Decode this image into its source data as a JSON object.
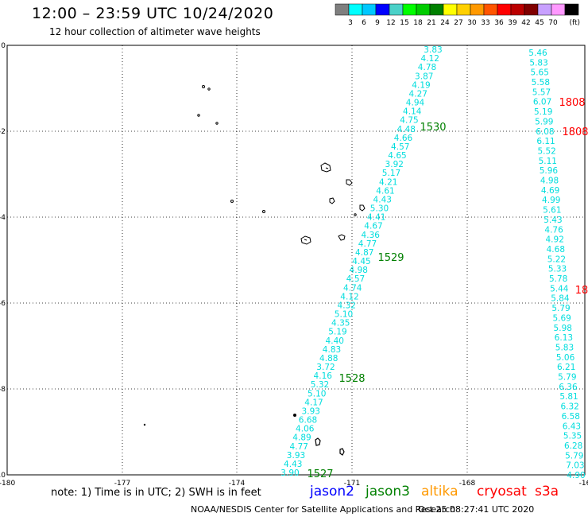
{
  "header": {
    "title": "12:00 – 23:59 UTC 10/24/2020",
    "subtitle": "12 hour collection of altimeter wave heights"
  },
  "colorbar": {
    "labels": [
      "3",
      "6",
      "9",
      "12",
      "15",
      "18",
      "21",
      "24",
      "27",
      "30",
      "33",
      "36",
      "39",
      "42",
      "45",
      "70"
    ],
    "unit": "(ft)",
    "colors": [
      "#7f7f7f",
      "#00ffff",
      "#00c8ff",
      "#0000ff",
      "#4bd1c8",
      "#00ff00",
      "#00cc00",
      "#008000",
      "#ffff00",
      "#ffd000",
      "#ff9900",
      "#ff5500",
      "#ff0000",
      "#bb0000",
      "#800000",
      "#c8a0ff",
      "#ff99ff",
      "#000000"
    ]
  },
  "axes": {
    "x_ticks": [
      "-180",
      "-177",
      "-174",
      "-171",
      "-168",
      "-16"
    ],
    "y_ticks": [
      "0",
      "-2",
      "-4",
      "-6",
      "-8",
      "-10"
    ]
  },
  "tracks": {
    "jason3_diag": {
      "color": "#00dddd",
      "values": [
        "3.83",
        "4.12",
        "4.78",
        "3.87",
        "4.19",
        "4.27",
        "4.94",
        "4.14",
        "4.75",
        "4.48",
        "4.66",
        "4.57",
        "4.65",
        "3.92",
        "5.17",
        "4.21",
        "4.61",
        "4.43",
        "5.30",
        "4.41",
        "4.67",
        "4.36",
        "4.77",
        "4.87",
        "4.45",
        "4.98",
        "4.57",
        "4.74",
        "4.12",
        "4.32",
        "5.10",
        "4.35",
        "5.19",
        "4.40",
        "4.83",
        "4.88",
        "3.72",
        "4.16",
        "5.32",
        "5.10",
        "4.17",
        "3.93",
        "6.68",
        "4.06",
        "4.89",
        "4.77",
        "3.93",
        "4.43",
        "3.90"
      ]
    },
    "right_col": {
      "color": "#00dddd",
      "values": [
        "5.46",
        "5.83",
        "5.65",
        "5.58",
        "5.57",
        "6.07",
        "5.19",
        "5.99",
        "6.08",
        "6.11",
        "5.52",
        "5.11",
        "5.96",
        "4.98",
        "4.69",
        "4.99",
        "5.61",
        "5.43",
        "4.76",
        "4.92",
        "4.68",
        "5.22",
        "5.33",
        "5.78",
        "5.44",
        "5.84",
        "5.79",
        "5.69",
        "5.98",
        "6.13",
        "5.83",
        "5.06",
        "6.21",
        "5.79",
        "6.36",
        "5.81",
        "6.32",
        "6.58",
        "6.43",
        "5.35",
        "6.28",
        "5.79",
        "7.03",
        "4.90"
      ]
    },
    "time_labels": [
      {
        "text": "1530",
        "color": "#008000"
      },
      {
        "text": "1529",
        "color": "#008000"
      },
      {
        "text": "1528",
        "color": "#008000"
      },
      {
        "text": "1527",
        "color": "#008000"
      },
      {
        "text": "1808",
        "color": "#ff0000"
      },
      {
        "text": "1808",
        "color": "#ff0000"
      },
      {
        "text": "18",
        "color": "#ff0000"
      }
    ]
  },
  "footer": {
    "note": "note: 1) Time is in UTC; 2) SWH is in feet",
    "satellites": [
      {
        "name": "jason2",
        "color": "#0000ff"
      },
      {
        "name": "jason3",
        "color": "#008000"
      },
      {
        "name": "altika",
        "color": "#ff9900"
      },
      {
        "name": "cryosat",
        "color": "#ff0000"
      },
      {
        "name": "s3a",
        "color": "#ff0000"
      }
    ],
    "credit": "NOAA/NESDIS Center for Satellite Applications and Research",
    "timestamp": "Oct 25 08:27:41 UTC 2020"
  }
}
